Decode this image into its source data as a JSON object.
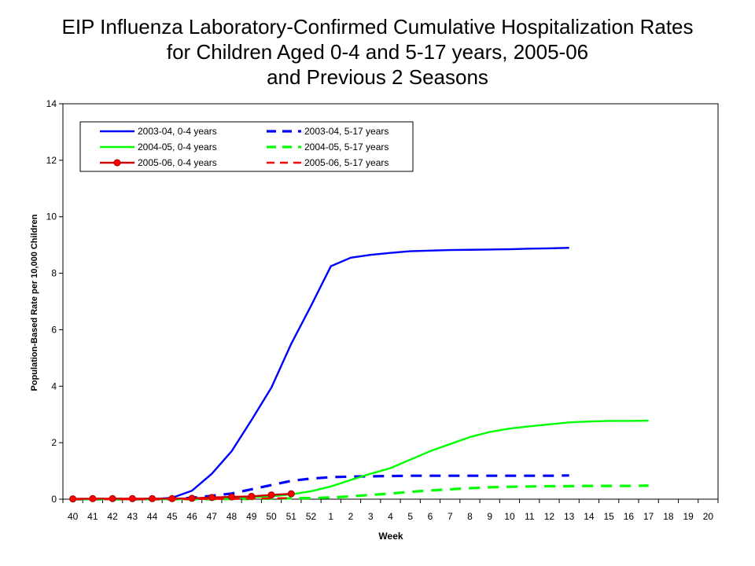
{
  "title_lines": [
    "EIP Influenza Laboratory-Confirmed Cumulative Hospitalization Rates",
    "for Children Aged 0-4 and 5-17 years, 2005-06",
    "and Previous 2 Seasons"
  ],
  "chart_data": {
    "type": "line",
    "title": "EIP Influenza Laboratory-Confirmed Cumulative Hospitalization Rates for Children Aged 0-4 and 5-17 years, 2005-06 and Previous 2 Seasons",
    "xlabel": "Week",
    "ylabel": "Population-Based Rate per 10,000 Children",
    "categories": [
      "40",
      "41",
      "42",
      "43",
      "44",
      "45",
      "46",
      "47",
      "48",
      "49",
      "50",
      "51",
      "52",
      "1",
      "2",
      "3",
      "4",
      "5",
      "6",
      "7",
      "8",
      "9",
      "10",
      "11",
      "12",
      "13",
      "14",
      "15",
      "16",
      "17",
      "18",
      "19",
      "20"
    ],
    "ylim": [
      0,
      14
    ],
    "yticks": [
      "0",
      "2",
      "4",
      "6",
      "8",
      "10",
      "12",
      "14"
    ],
    "grid": false,
    "legend_position": "top-left",
    "series": [
      {
        "name": "2003-04, 0-4 years",
        "color": "#0000ff",
        "dash": "solid",
        "markers": false,
        "values": [
          0,
          0,
          0,
          0,
          0,
          0.05,
          0.3,
          0.9,
          1.7,
          2.8,
          3.95,
          5.5,
          6.85,
          8.25,
          8.55,
          8.65,
          8.72,
          8.78,
          8.8,
          8.82,
          8.83,
          8.84,
          8.85,
          8.87,
          8.88,
          8.9,
          null,
          null,
          null,
          null,
          null,
          null,
          null
        ]
      },
      {
        "name": "2003-04, 5-17 years",
        "color": "#0000ff",
        "dash": "dash",
        "markers": false,
        "values": [
          0,
          0,
          0,
          0,
          0,
          0,
          0.05,
          0.12,
          0.2,
          0.35,
          0.5,
          0.65,
          0.73,
          0.78,
          0.8,
          0.81,
          0.82,
          0.83,
          0.83,
          0.83,
          0.83,
          0.83,
          0.83,
          0.83,
          0.83,
          0.84,
          null,
          null,
          null,
          null,
          null,
          null,
          null
        ]
      },
      {
        "name": "2004-05, 0-4 years",
        "color": "#00ff00",
        "dash": "solid",
        "markers": false,
        "values": [
          0,
          0,
          0,
          0,
          0,
          0,
          0,
          0.02,
          0.04,
          0.07,
          0.1,
          0.17,
          0.28,
          0.45,
          0.68,
          0.9,
          1.1,
          1.4,
          1.7,
          1.95,
          2.2,
          2.38,
          2.5,
          2.58,
          2.65,
          2.72,
          2.75,
          2.77,
          2.77,
          2.78,
          null,
          null,
          null
        ]
      },
      {
        "name": "2004-05, 5-17 years",
        "color": "#00ff00",
        "dash": "dash",
        "markers": false,
        "values": [
          0,
          0,
          0,
          0,
          0,
          0,
          0,
          0,
          0.01,
          0.01,
          0.02,
          0.03,
          0.04,
          0.06,
          0.1,
          0.15,
          0.2,
          0.26,
          0.31,
          0.35,
          0.39,
          0.42,
          0.44,
          0.45,
          0.46,
          0.46,
          0.47,
          0.47,
          0.47,
          0.48,
          null,
          null,
          null
        ]
      },
      {
        "name": "2005-06, 0-4 years",
        "color": "#cc0000",
        "dash": "solid",
        "markers": true,
        "values": [
          0.01,
          0.02,
          0.02,
          0.02,
          0.02,
          0.02,
          0.03,
          0.06,
          0.08,
          0.1,
          0.15,
          0.19,
          null,
          null,
          null,
          null,
          null,
          null,
          null,
          null,
          null,
          null,
          null,
          null,
          null,
          null,
          null,
          null,
          null,
          null,
          null,
          null,
          null
        ]
      },
      {
        "name": "2005-06, 5-17 years",
        "color": "#ff0000",
        "dash": "longdash",
        "markers": false,
        "values": [
          0,
          0,
          0,
          0,
          0,
          0,
          0,
          0.01,
          0.01,
          0.02,
          0.03,
          0.04,
          null,
          null,
          null,
          null,
          null,
          null,
          null,
          null,
          null,
          null,
          null,
          null,
          null,
          null,
          null,
          null,
          null,
          null,
          null,
          null,
          null
        ]
      }
    ]
  }
}
